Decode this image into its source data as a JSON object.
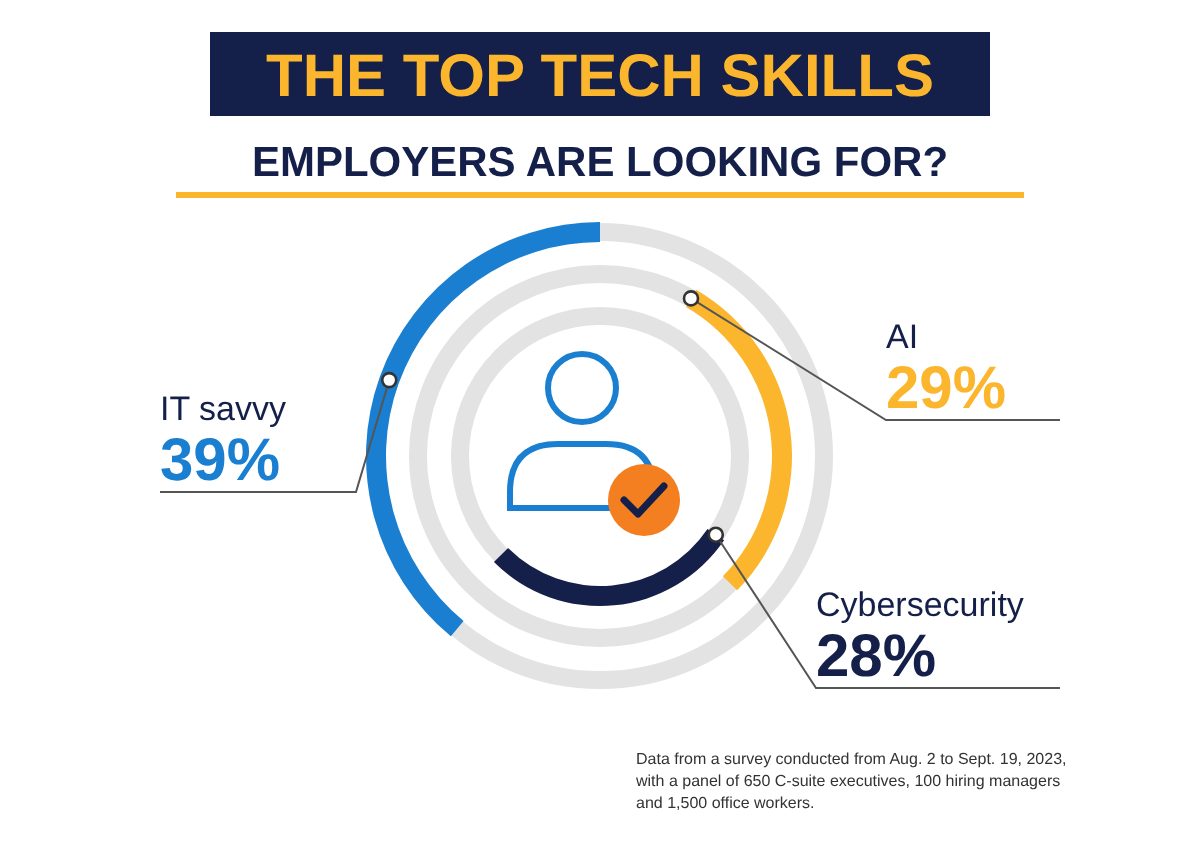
{
  "chart_data": {
    "type": "other",
    "title": "THE TOP TECH SKILLS",
    "subtitle": "EMPLOYERS ARE LOOKING FOR?",
    "categories": [
      "IT savvy",
      "AI",
      "Cybersecurity"
    ],
    "values": [
      39,
      29,
      28
    ],
    "value_labels": [
      "39%",
      "29%",
      "28%"
    ],
    "colors": [
      "#1a7fd0",
      "#fbb62e",
      "#14204a"
    ],
    "annotations": [
      "Data from a survey conducted from Aug. 2 to Sept. 19, 2023, with a panel of 650 C-suite executives, 100 hiring managers and 1,500 office workers."
    ]
  }
}
